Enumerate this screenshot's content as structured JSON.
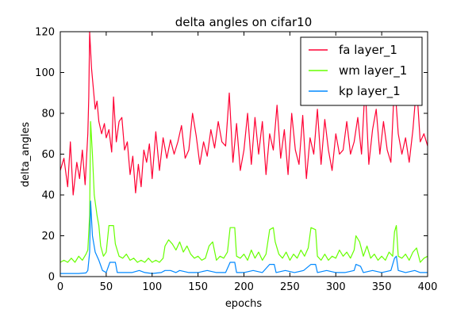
{
  "chart_data": {
    "type": "line",
    "title": "delta angles on cifar10",
    "xlabel": "epochs",
    "ylabel": "delta_angles",
    "xlim": [
      0,
      400
    ],
    "ylim": [
      0,
      120
    ],
    "x_ticks": [
      "0",
      "50",
      "100",
      "150",
      "200",
      "250",
      "300",
      "350",
      "400"
    ],
    "y_ticks": [
      "0",
      "20",
      "40",
      "60",
      "80",
      "100",
      "120"
    ],
    "grid": false,
    "legend_position": "top-right",
    "series": [
      {
        "name": "fa layer_1",
        "color": "#ff0033",
        "points": [
          [
            0,
            52
          ],
          [
            4,
            58
          ],
          [
            8,
            44
          ],
          [
            11,
            66
          ],
          [
            14,
            40
          ],
          [
            18,
            56
          ],
          [
            21,
            48
          ],
          [
            24,
            62
          ],
          [
            27,
            45
          ],
          [
            30,
            70
          ],
          [
            31,
            88
          ],
          [
            32,
            120
          ],
          [
            34,
            102
          ],
          [
            36,
            92
          ],
          [
            38,
            82
          ],
          [
            40,
            86
          ],
          [
            42,
            76
          ],
          [
            45,
            70
          ],
          [
            48,
            75
          ],
          [
            50,
            68
          ],
          [
            53,
            72
          ],
          [
            56,
            61
          ],
          [
            58,
            88
          ],
          [
            61,
            66
          ],
          [
            64,
            76
          ],
          [
            67,
            78
          ],
          [
            70,
            62
          ],
          [
            73,
            66
          ],
          [
            76,
            50
          ],
          [
            79,
            59
          ],
          [
            82,
            41
          ],
          [
            85,
            55
          ],
          [
            88,
            44
          ],
          [
            91,
            62
          ],
          [
            94,
            56
          ],
          [
            97,
            65
          ],
          [
            100,
            48
          ],
          [
            104,
            71
          ],
          [
            108,
            52
          ],
          [
            112,
            68
          ],
          [
            116,
            58
          ],
          [
            120,
            67
          ],
          [
            124,
            60
          ],
          [
            128,
            66
          ],
          [
            132,
            74
          ],
          [
            136,
            58
          ],
          [
            140,
            62
          ],
          [
            144,
            80
          ],
          [
            148,
            69
          ],
          [
            152,
            55
          ],
          [
            156,
            66
          ],
          [
            160,
            59
          ],
          [
            164,
            72
          ],
          [
            168,
            63
          ],
          [
            172,
            76
          ],
          [
            176,
            66
          ],
          [
            180,
            64
          ],
          [
            184,
            90
          ],
          [
            188,
            56
          ],
          [
            192,
            75
          ],
          [
            196,
            52
          ],
          [
            200,
            62
          ],
          [
            204,
            80
          ],
          [
            208,
            55
          ],
          [
            212,
            78
          ],
          [
            216,
            60
          ],
          [
            220,
            76
          ],
          [
            224,
            50
          ],
          [
            228,
            70
          ],
          [
            232,
            62
          ],
          [
            236,
            84
          ],
          [
            240,
            58
          ],
          [
            244,
            72
          ],
          [
            248,
            50
          ],
          [
            252,
            80
          ],
          [
            256,
            62
          ],
          [
            260,
            55
          ],
          [
            264,
            79
          ],
          [
            268,
            48
          ],
          [
            272,
            68
          ],
          [
            276,
            60
          ],
          [
            280,
            82
          ],
          [
            284,
            55
          ],
          [
            288,
            77
          ],
          [
            292,
            62
          ],
          [
            296,
            52
          ],
          [
            300,
            70
          ],
          [
            304,
            60
          ],
          [
            308,
            62
          ],
          [
            312,
            76
          ],
          [
            316,
            60
          ],
          [
            320,
            66
          ],
          [
            324,
            78
          ],
          [
            328,
            60
          ],
          [
            332,
            94
          ],
          [
            336,
            55
          ],
          [
            340,
            72
          ],
          [
            344,
            82
          ],
          [
            348,
            60
          ],
          [
            352,
            76
          ],
          [
            356,
            62
          ],
          [
            360,
            56
          ],
          [
            364,
            96
          ],
          [
            368,
            70
          ],
          [
            372,
            60
          ],
          [
            376,
            68
          ],
          [
            380,
            56
          ],
          [
            384,
            72
          ],
          [
            388,
            94
          ],
          [
            392,
            66
          ],
          [
            396,
            70
          ],
          [
            400,
            64
          ]
        ]
      },
      {
        "name": "wm layer_1",
        "color": "#66ff00",
        "points": [
          [
            0,
            7
          ],
          [
            4,
            8
          ],
          [
            8,
            7
          ],
          [
            12,
            9
          ],
          [
            16,
            7
          ],
          [
            20,
            10
          ],
          [
            24,
            8
          ],
          [
            28,
            11
          ],
          [
            30,
            13
          ],
          [
            32,
            30
          ],
          [
            33,
            76
          ],
          [
            35,
            60
          ],
          [
            37,
            40
          ],
          [
            40,
            30
          ],
          [
            42,
            25
          ],
          [
            44,
            15
          ],
          [
            47,
            10
          ],
          [
            50,
            12
          ],
          [
            53,
            25
          ],
          [
            58,
            25
          ],
          [
            60,
            16
          ],
          [
            64,
            10
          ],
          [
            68,
            9
          ],
          [
            72,
            11
          ],
          [
            76,
            8
          ],
          [
            80,
            9
          ],
          [
            84,
            7
          ],
          [
            88,
            8
          ],
          [
            92,
            7
          ],
          [
            96,
            9
          ],
          [
            100,
            7
          ],
          [
            104,
            8
          ],
          [
            108,
            7
          ],
          [
            112,
            9
          ],
          [
            114,
            15
          ],
          [
            118,
            18
          ],
          [
            122,
            16
          ],
          [
            126,
            13
          ],
          [
            130,
            17
          ],
          [
            134,
            12
          ],
          [
            138,
            15
          ],
          [
            142,
            11
          ],
          [
            146,
            9
          ],
          [
            150,
            10
          ],
          [
            154,
            8
          ],
          [
            158,
            9
          ],
          [
            162,
            15
          ],
          [
            166,
            17
          ],
          [
            170,
            8
          ],
          [
            174,
            10
          ],
          [
            178,
            9
          ],
          [
            182,
            12
          ],
          [
            185,
            24
          ],
          [
            190,
            24
          ],
          [
            192,
            10
          ],
          [
            196,
            9
          ],
          [
            200,
            11
          ],
          [
            204,
            8
          ],
          [
            208,
            13
          ],
          [
            212,
            9
          ],
          [
            216,
            12
          ],
          [
            220,
            8
          ],
          [
            224,
            11
          ],
          [
            228,
            23
          ],
          [
            232,
            24
          ],
          [
            234,
            17
          ],
          [
            238,
            11
          ],
          [
            242,
            9
          ],
          [
            246,
            12
          ],
          [
            250,
            8
          ],
          [
            254,
            11
          ],
          [
            258,
            9
          ],
          [
            262,
            13
          ],
          [
            266,
            10
          ],
          [
            270,
            14
          ],
          [
            273,
            24
          ],
          [
            278,
            23
          ],
          [
            280,
            10
          ],
          [
            284,
            8
          ],
          [
            288,
            11
          ],
          [
            292,
            8
          ],
          [
            296,
            10
          ],
          [
            300,
            9
          ],
          [
            304,
            13
          ],
          [
            308,
            10
          ],
          [
            312,
            12
          ],
          [
            316,
            9
          ],
          [
            320,
            13
          ],
          [
            322,
            20
          ],
          [
            326,
            17
          ],
          [
            330,
            10
          ],
          [
            334,
            15
          ],
          [
            338,
            9
          ],
          [
            342,
            11
          ],
          [
            346,
            8
          ],
          [
            350,
            10
          ],
          [
            354,
            8
          ],
          [
            358,
            12
          ],
          [
            362,
            10
          ],
          [
            364,
            22
          ],
          [
            366,
            25
          ],
          [
            368,
            10
          ],
          [
            372,
            9
          ],
          [
            376,
            11
          ],
          [
            380,
            8
          ],
          [
            384,
            12
          ],
          [
            388,
            14
          ],
          [
            392,
            7
          ],
          [
            396,
            9
          ],
          [
            400,
            10
          ]
        ]
      },
      {
        "name": "kp layer_1",
        "color": "#0088ff",
        "points": [
          [
            0,
            1.5
          ],
          [
            10,
            1.5
          ],
          [
            20,
            1.5
          ],
          [
            28,
            1.8
          ],
          [
            30,
            3
          ],
          [
            32,
            12
          ],
          [
            33,
            37
          ],
          [
            35,
            20
          ],
          [
            38,
            12
          ],
          [
            42,
            8
          ],
          [
            46,
            3
          ],
          [
            50,
            2
          ],
          [
            54,
            7
          ],
          [
            60,
            7
          ],
          [
            62,
            2
          ],
          [
            70,
            2
          ],
          [
            78,
            2
          ],
          [
            86,
            3
          ],
          [
            92,
            2
          ],
          [
            100,
            1.5
          ],
          [
            110,
            2
          ],
          [
            114,
            3
          ],
          [
            120,
            3
          ],
          [
            126,
            2
          ],
          [
            130,
            3
          ],
          [
            140,
            2
          ],
          [
            150,
            2
          ],
          [
            160,
            3
          ],
          [
            170,
            2
          ],
          [
            180,
            2
          ],
          [
            185,
            7
          ],
          [
            190,
            7
          ],
          [
            192,
            2
          ],
          [
            200,
            2
          ],
          [
            210,
            3
          ],
          [
            220,
            2
          ],
          [
            228,
            6
          ],
          [
            233,
            6
          ],
          [
            235,
            2
          ],
          [
            245,
            3
          ],
          [
            255,
            2
          ],
          [
            265,
            3
          ],
          [
            273,
            6
          ],
          [
            278,
            6
          ],
          [
            280,
            2
          ],
          [
            290,
            3
          ],
          [
            300,
            2
          ],
          [
            310,
            2
          ],
          [
            320,
            3
          ],
          [
            322,
            6
          ],
          [
            327,
            5
          ],
          [
            330,
            2
          ],
          [
            340,
            3
          ],
          [
            350,
            2
          ],
          [
            360,
            3
          ],
          [
            364,
            9
          ],
          [
            366,
            10
          ],
          [
            368,
            3
          ],
          [
            376,
            2
          ],
          [
            386,
            3
          ],
          [
            392,
            2
          ],
          [
            400,
            2
          ]
        ]
      }
    ]
  }
}
